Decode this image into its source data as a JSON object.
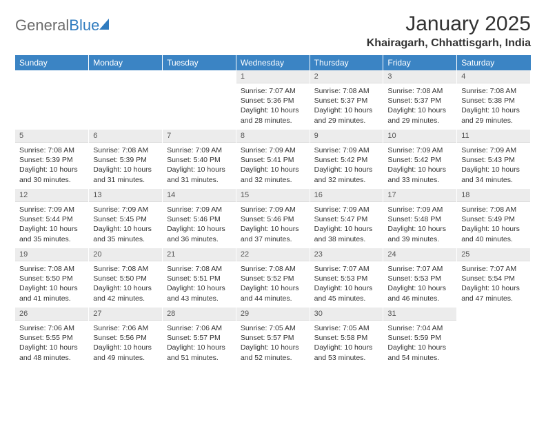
{
  "brand": {
    "part1": "General",
    "part2": "Blue"
  },
  "title": "January 2025",
  "location": "Khairagarh, Chhattisgarh, India",
  "colors": {
    "header_bg": "#3b84c4",
    "header_fg": "#ffffff",
    "daynum_bg": "#ececec",
    "text": "#333333",
    "logo_gray": "#6b6b6b",
    "logo_blue": "#2f7bbf"
  },
  "daysOfWeek": [
    "Sunday",
    "Monday",
    "Tuesday",
    "Wednesday",
    "Thursday",
    "Friday",
    "Saturday"
  ],
  "startWeekday": 3,
  "daysInMonth": 31,
  "days": {
    "1": {
      "sunrise": "7:07 AM",
      "sunset": "5:36 PM",
      "daylight": "10 hours and 28 minutes."
    },
    "2": {
      "sunrise": "7:08 AM",
      "sunset": "5:37 PM",
      "daylight": "10 hours and 29 minutes."
    },
    "3": {
      "sunrise": "7:08 AM",
      "sunset": "5:37 PM",
      "daylight": "10 hours and 29 minutes."
    },
    "4": {
      "sunrise": "7:08 AM",
      "sunset": "5:38 PM",
      "daylight": "10 hours and 29 minutes."
    },
    "5": {
      "sunrise": "7:08 AM",
      "sunset": "5:39 PM",
      "daylight": "10 hours and 30 minutes."
    },
    "6": {
      "sunrise": "7:08 AM",
      "sunset": "5:39 PM",
      "daylight": "10 hours and 31 minutes."
    },
    "7": {
      "sunrise": "7:09 AM",
      "sunset": "5:40 PM",
      "daylight": "10 hours and 31 minutes."
    },
    "8": {
      "sunrise": "7:09 AM",
      "sunset": "5:41 PM",
      "daylight": "10 hours and 32 minutes."
    },
    "9": {
      "sunrise": "7:09 AM",
      "sunset": "5:42 PM",
      "daylight": "10 hours and 32 minutes."
    },
    "10": {
      "sunrise": "7:09 AM",
      "sunset": "5:42 PM",
      "daylight": "10 hours and 33 minutes."
    },
    "11": {
      "sunrise": "7:09 AM",
      "sunset": "5:43 PM",
      "daylight": "10 hours and 34 minutes."
    },
    "12": {
      "sunrise": "7:09 AM",
      "sunset": "5:44 PM",
      "daylight": "10 hours and 35 minutes."
    },
    "13": {
      "sunrise": "7:09 AM",
      "sunset": "5:45 PM",
      "daylight": "10 hours and 35 minutes."
    },
    "14": {
      "sunrise": "7:09 AM",
      "sunset": "5:46 PM",
      "daylight": "10 hours and 36 minutes."
    },
    "15": {
      "sunrise": "7:09 AM",
      "sunset": "5:46 PM",
      "daylight": "10 hours and 37 minutes."
    },
    "16": {
      "sunrise": "7:09 AM",
      "sunset": "5:47 PM",
      "daylight": "10 hours and 38 minutes."
    },
    "17": {
      "sunrise": "7:09 AM",
      "sunset": "5:48 PM",
      "daylight": "10 hours and 39 minutes."
    },
    "18": {
      "sunrise": "7:08 AM",
      "sunset": "5:49 PM",
      "daylight": "10 hours and 40 minutes."
    },
    "19": {
      "sunrise": "7:08 AM",
      "sunset": "5:50 PM",
      "daylight": "10 hours and 41 minutes."
    },
    "20": {
      "sunrise": "7:08 AM",
      "sunset": "5:50 PM",
      "daylight": "10 hours and 42 minutes."
    },
    "21": {
      "sunrise": "7:08 AM",
      "sunset": "5:51 PM",
      "daylight": "10 hours and 43 minutes."
    },
    "22": {
      "sunrise": "7:08 AM",
      "sunset": "5:52 PM",
      "daylight": "10 hours and 44 minutes."
    },
    "23": {
      "sunrise": "7:07 AM",
      "sunset": "5:53 PM",
      "daylight": "10 hours and 45 minutes."
    },
    "24": {
      "sunrise": "7:07 AM",
      "sunset": "5:53 PM",
      "daylight": "10 hours and 46 minutes."
    },
    "25": {
      "sunrise": "7:07 AM",
      "sunset": "5:54 PM",
      "daylight": "10 hours and 47 minutes."
    },
    "26": {
      "sunrise": "7:06 AM",
      "sunset": "5:55 PM",
      "daylight": "10 hours and 48 minutes."
    },
    "27": {
      "sunrise": "7:06 AM",
      "sunset": "5:56 PM",
      "daylight": "10 hours and 49 minutes."
    },
    "28": {
      "sunrise": "7:06 AM",
      "sunset": "5:57 PM",
      "daylight": "10 hours and 51 minutes."
    },
    "29": {
      "sunrise": "7:05 AM",
      "sunset": "5:57 PM",
      "daylight": "10 hours and 52 minutes."
    },
    "30": {
      "sunrise": "7:05 AM",
      "sunset": "5:58 PM",
      "daylight": "10 hours and 53 minutes."
    },
    "31": {
      "sunrise": "7:04 AM",
      "sunset": "5:59 PM",
      "daylight": "10 hours and 54 minutes."
    }
  },
  "labels": {
    "sunrise": "Sunrise:",
    "sunset": "Sunset:",
    "daylight": "Daylight:"
  }
}
